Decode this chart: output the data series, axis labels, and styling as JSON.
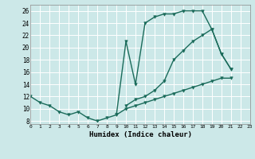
{
  "xlabel": "Humidex (Indice chaleur)",
  "xlim": [
    0,
    23
  ],
  "ylim": [
    7.5,
    27
  ],
  "yticks": [
    8,
    10,
    12,
    14,
    16,
    18,
    20,
    22,
    24,
    26
  ],
  "xticks": [
    0,
    1,
    2,
    3,
    4,
    5,
    6,
    7,
    8,
    9,
    10,
    11,
    12,
    13,
    14,
    15,
    16,
    17,
    18,
    19,
    20,
    21,
    22,
    23
  ],
  "bg_color": "#cce8e8",
  "line_color": "#1a6b5a",
  "grid_color": "#ffffff",
  "line1_y": [
    12,
    11,
    10.5,
    9.5,
    9,
    9.5,
    8.5,
    8.0,
    8.5,
    9.0,
    21.0,
    14.0,
    24.0,
    25.0,
    25.5,
    25.5,
    26.0,
    26.0,
    26.0,
    23.0,
    19.0,
    16.5,
    null,
    null
  ],
  "line2_y": [
    null,
    null,
    null,
    null,
    null,
    null,
    null,
    null,
    null,
    null,
    10.5,
    11.5,
    12.0,
    13.0,
    14.5,
    18.0,
    19.5,
    21.0,
    22.0,
    23.0,
    19.0,
    16.5,
    null,
    null
  ],
  "line3_y": [
    null,
    null,
    null,
    null,
    null,
    null,
    null,
    null,
    null,
    9.0,
    10.0,
    10.5,
    11.0,
    11.5,
    12.0,
    12.5,
    13.0,
    13.5,
    14.0,
    14.5,
    15.0,
    15.0,
    null,
    null
  ],
  "marker_size": 2.5,
  "line_width": 1.0
}
